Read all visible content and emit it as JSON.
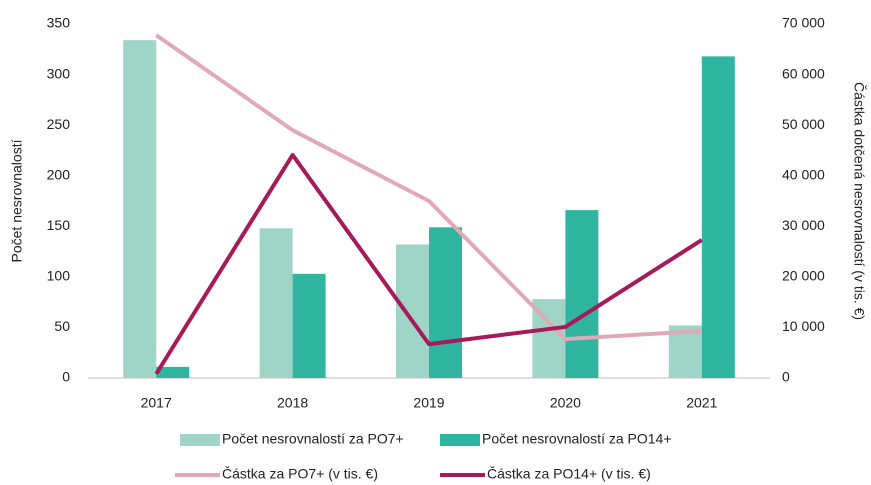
{
  "chart_data": {
    "type": "bar",
    "categories": [
      "2017",
      "2018",
      "2019",
      "2020",
      "2021"
    ],
    "ylabel": "Počet nesrovnalostí",
    "y2label": "Částka dotčená nesrovnalostí (v tis. €)",
    "ylim": [
      0,
      350
    ],
    "yticks": [
      0,
      50,
      100,
      150,
      200,
      250,
      300,
      350
    ],
    "y2lim": [
      0,
      70000
    ],
    "y2ticks": [
      0,
      {
        "value": 10000,
        "label": "10 000"
      },
      {
        "value": 20000,
        "label": "20 000"
      },
      {
        "value": 30000,
        "label": "30 000"
      },
      {
        "value": 40000,
        "label": "40 000"
      },
      {
        "value": 50000,
        "label": "50 000"
      },
      {
        "value": 60000,
        "label": "60 000"
      },
      {
        "value": 70000,
        "label": "70 000"
      }
    ],
    "series": [
      {
        "name": "Počet nesrovnalostí za PO7+",
        "type": "bar",
        "color": "#9fd5c6",
        "values": [
          334,
          148,
          132,
          78,
          52
        ]
      },
      {
        "name": "Počet nesrovnalostí za PO14+",
        "type": "bar",
        "color": "#2fb5a0",
        "values": [
          11,
          103,
          149,
          166,
          318
        ]
      },
      {
        "name": "Částka za PO7+ (v tis. €)",
        "type": "line",
        "axis": "y2",
        "color": "#e0a9b5",
        "values": [
          67800,
          49000,
          35000,
          7700,
          9300
        ]
      },
      {
        "name": "Částka za PO14+ (v tis. €)",
        "type": "line",
        "axis": "y2",
        "color": "#a6195a",
        "values": [
          800,
          44100,
          6700,
          10100,
          27300
        ]
      }
    ]
  }
}
